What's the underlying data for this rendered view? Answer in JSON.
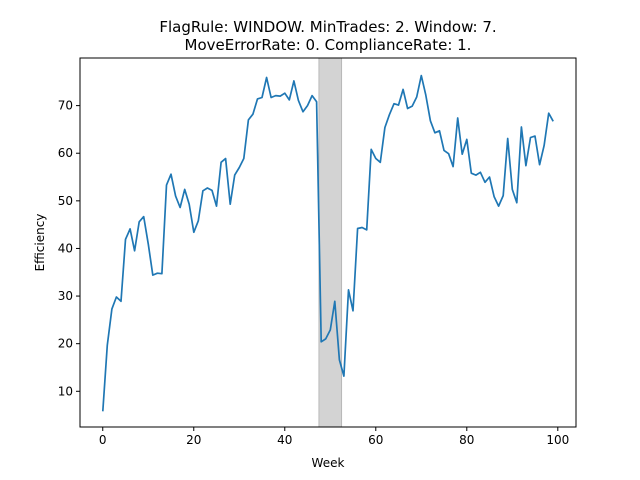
{
  "chart_data": {
    "type": "line",
    "title": "FlagRule: WINDOW. MinTrades: 2. Window: 7.",
    "subtitle": "MoveErrorRate: 0. ComplianceRate: 1.",
    "xlabel": "Week",
    "ylabel": "Efficiency",
    "xlim": [
      -5,
      104
    ],
    "ylim": [
      2.5,
      80
    ],
    "x_ticks": [
      0,
      20,
      40,
      60,
      80,
      100
    ],
    "y_ticks": [
      10,
      20,
      30,
      40,
      50,
      60,
      70
    ],
    "grid": false,
    "line_color": "#1f77b4",
    "shaded_region": {
      "x_start": 47.5,
      "x_end": 52.5,
      "color": "#d3d3d3"
    },
    "series": [
      {
        "values": [
          [
            0,
            5.8
          ],
          [
            1,
            19.7
          ],
          [
            2,
            27.3
          ],
          [
            3,
            29.8
          ],
          [
            4,
            28.9
          ],
          [
            5,
            41.9
          ],
          [
            6,
            44.1
          ],
          [
            7,
            39.5
          ],
          [
            8,
            45.6
          ],
          [
            9,
            46.7
          ],
          [
            10,
            40.9
          ],
          [
            11,
            34.4
          ],
          [
            12,
            34.8
          ],
          [
            13,
            34.7
          ],
          [
            14,
            53.3
          ],
          [
            15,
            55.6
          ],
          [
            16,
            51.0
          ],
          [
            17,
            48.6
          ],
          [
            18,
            52.4
          ],
          [
            19,
            49.3
          ],
          [
            20,
            43.4
          ],
          [
            21,
            45.8
          ],
          [
            22,
            52.1
          ],
          [
            23,
            52.7
          ],
          [
            24,
            52.2
          ],
          [
            25,
            48.9
          ],
          [
            26,
            58.1
          ],
          [
            27,
            58.9
          ],
          [
            28,
            49.3
          ],
          [
            29,
            55.4
          ],
          [
            30,
            57.0
          ],
          [
            31,
            58.9
          ],
          [
            32,
            67.0
          ],
          [
            33,
            68.2
          ],
          [
            34,
            71.4
          ],
          [
            35,
            71.7
          ],
          [
            36,
            75.9
          ],
          [
            37,
            71.7
          ],
          [
            38,
            72.1
          ],
          [
            39,
            72.0
          ],
          [
            40,
            72.6
          ],
          [
            41,
            71.2
          ],
          [
            42,
            75.2
          ],
          [
            43,
            71.1
          ],
          [
            44,
            68.7
          ],
          [
            45,
            70.0
          ],
          [
            46,
            72.1
          ],
          [
            47,
            70.8
          ],
          [
            48,
            20.4
          ],
          [
            49,
            21.0
          ],
          [
            50,
            22.9
          ],
          [
            51,
            28.9
          ],
          [
            52,
            16.6
          ],
          [
            53,
            13.2
          ],
          [
            54,
            31.3
          ],
          [
            55,
            26.9
          ],
          [
            56,
            44.2
          ],
          [
            57,
            44.4
          ],
          [
            58,
            43.9
          ],
          [
            59,
            60.8
          ],
          [
            60,
            58.9
          ],
          [
            61,
            58.1
          ],
          [
            62,
            65.4
          ],
          [
            63,
            68.1
          ],
          [
            64,
            70.4
          ],
          [
            65,
            70.1
          ],
          [
            66,
            73.4
          ],
          [
            67,
            69.4
          ],
          [
            68,
            69.9
          ],
          [
            69,
            71.8
          ],
          [
            70,
            76.3
          ],
          [
            71,
            72.2
          ],
          [
            72,
            66.8
          ],
          [
            73,
            64.3
          ],
          [
            74,
            64.7
          ],
          [
            75,
            60.6
          ],
          [
            76,
            59.9
          ],
          [
            77,
            57.2
          ],
          [
            78,
            67.4
          ],
          [
            79,
            59.8
          ],
          [
            80,
            62.9
          ],
          [
            81,
            55.8
          ],
          [
            82,
            55.4
          ],
          [
            83,
            56.0
          ],
          [
            84,
            53.9
          ],
          [
            85,
            55.0
          ],
          [
            86,
            50.9
          ],
          [
            87,
            48.9
          ],
          [
            88,
            51.1
          ],
          [
            89,
            63.1
          ],
          [
            90,
            52.4
          ],
          [
            91,
            49.6
          ],
          [
            92,
            65.5
          ],
          [
            93,
            57.4
          ],
          [
            94,
            63.3
          ],
          [
            95,
            63.6
          ],
          [
            96,
            57.6
          ],
          [
            97,
            61.6
          ],
          [
            98,
            68.4
          ],
          [
            99,
            66.7
          ]
        ]
      }
    ]
  }
}
